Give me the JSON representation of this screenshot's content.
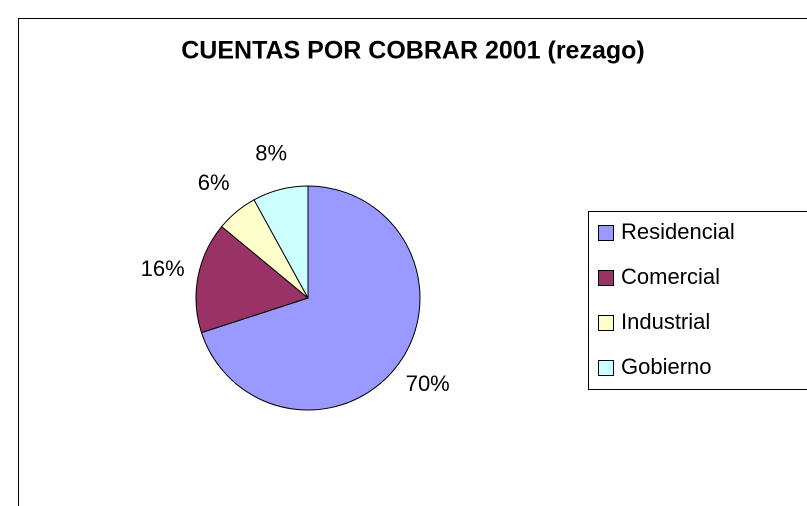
{
  "chart_data": {
    "type": "pie",
    "title": "CUENTAS POR COBRAR 2001 (rezago)",
    "categories": [
      "Residencial",
      "Comercial",
      "Industrial",
      "Gobierno"
    ],
    "values": [
      70,
      16,
      6,
      8
    ],
    "value_labels": [
      "70%",
      "16%",
      "6%",
      "8%"
    ],
    "colors": [
      "#9999ff",
      "#993366",
      "#ffffcc",
      "#ccffff"
    ],
    "legend": "right"
  }
}
